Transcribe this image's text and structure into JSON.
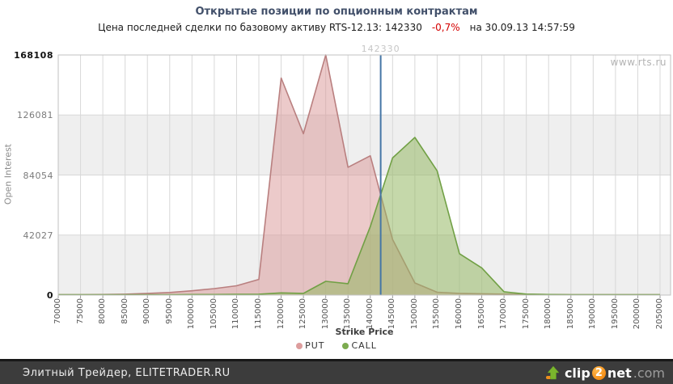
{
  "title": "Открытые позиции по опционным контрактам",
  "subtitle": {
    "label": "Цена последней сделки по базовому активу RTS-12.13:",
    "price": "142330",
    "change": "-0,7%",
    "datetime": "на 30.09.13 14:57:59"
  },
  "watermark": "www.rts.ru",
  "chart_data": {
    "type": "area",
    "xlabel": "Strike Price",
    "ylabel": "Open Interest",
    "xlim": [
      70000,
      205000
    ],
    "ylim": [
      0,
      168108
    ],
    "grid": true,
    "legend_position": "bottom",
    "x_ticks": [
      70000,
      75000,
      80000,
      85000,
      90000,
      95000,
      100000,
      105000,
      110000,
      115000,
      120000,
      125000,
      130000,
      135000,
      140000,
      145000,
      150000,
      155000,
      160000,
      165000,
      170000,
      175000,
      180000,
      185000,
      190000,
      195000,
      200000,
      205000
    ],
    "y_ticks": [
      0,
      42027,
      84054,
      126081,
      168108
    ],
    "marker_line": {
      "x": 142330,
      "label": "142330",
      "color": "#4576a6"
    },
    "series": [
      {
        "name": "PUT",
        "colors": {
          "fill": "rgba(218,150,150,0.5)",
          "line": "#b97f7f",
          "dot": "#dd9d9d"
        },
        "x": [
          70000,
          75000,
          80000,
          85000,
          90000,
          95000,
          100000,
          105000,
          110000,
          115000,
          120000,
          125000,
          130000,
          135000,
          140000,
          145000,
          150000,
          155000,
          160000,
          165000,
          170000,
          175000,
          180000,
          185000,
          190000,
          195000,
          200000,
          205000
        ],
        "values": [
          300,
          300,
          400,
          600,
          1200,
          1800,
          3000,
          4500,
          6500,
          11000,
          152000,
          113000,
          168108,
          89500,
          97500,
          39000,
          8500,
          2000,
          1200,
          900,
          700,
          500,
          400,
          300,
          300,
          300,
          300,
          300
        ]
      },
      {
        "name": "CALL",
        "colors": {
          "fill": "rgba(150,184,100,0.55)",
          "line": "#71a045",
          "dot": "#7cab4f"
        },
        "x": [
          70000,
          75000,
          80000,
          85000,
          90000,
          95000,
          100000,
          105000,
          110000,
          115000,
          120000,
          125000,
          130000,
          135000,
          140000,
          145000,
          150000,
          155000,
          160000,
          165000,
          170000,
          175000,
          180000,
          185000,
          190000,
          195000,
          200000,
          205000
        ],
        "values": [
          200,
          200,
          200,
          300,
          300,
          300,
          400,
          400,
          500,
          600,
          1500,
          1200,
          9600,
          8000,
          48000,
          96000,
          110400,
          87000,
          29000,
          19000,
          2300,
          700,
          400,
          300,
          300,
          300,
          300,
          300
        ]
      }
    ]
  },
  "footer": {
    "credit": "Элитный Трейдер, ELITETRADER.RU",
    "logo": {
      "clip": "clip",
      "two": "2",
      "net": "net",
      "com": ".com"
    }
  }
}
